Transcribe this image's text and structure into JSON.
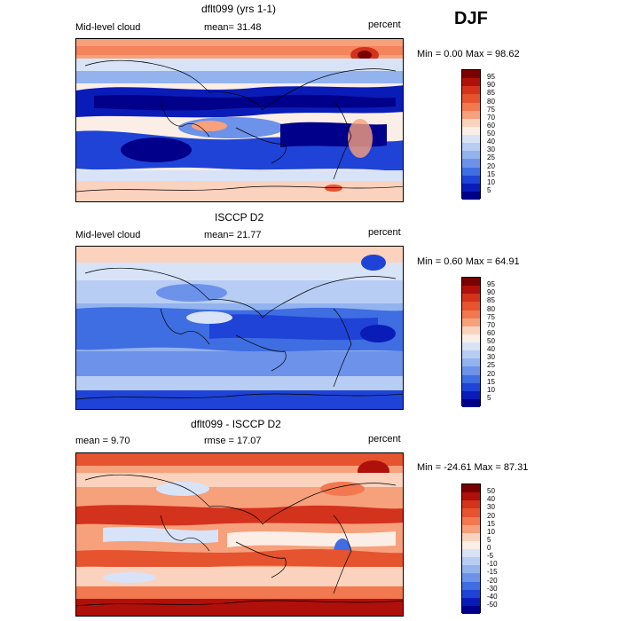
{
  "season": "DJF",
  "panels": [
    {
      "title": "dflt099 (yrs 1-1)",
      "field": "Mid-level cloud",
      "mean": "mean=  31.48",
      "units": "percent",
      "minmax": "Min =   0.00 Max =  98.62",
      "levels": [
        "95",
        "90",
        "85",
        "80",
        "75",
        "70",
        "60",
        "50",
        "40",
        "30",
        "25",
        "20",
        "15",
        "10",
        "5"
      ],
      "colors": [
        "#7a0000",
        "#b0100a",
        "#d3321c",
        "#e6532f",
        "#f2784f",
        "#f7a07c",
        "#fbd2be",
        "#fbeee6",
        "#d8e3f8",
        "#b7cdf4",
        "#93b3ef",
        "#6c92ea",
        "#3f6de2",
        "#1f43d6",
        "#0a1cb8",
        "#00008a"
      ]
    },
    {
      "title": "ISCCP D2",
      "field": "Mid-level cloud",
      "mean": "mean=  21.77",
      "units": "percent",
      "minmax": "Min =   0.60 Max =  64.91",
      "levels": [
        "95",
        "90",
        "85",
        "80",
        "75",
        "70",
        "60",
        "50",
        "40",
        "30",
        "25",
        "20",
        "15",
        "10",
        "5"
      ],
      "colors": [
        "#7a0000",
        "#b0100a",
        "#d3321c",
        "#e6532f",
        "#f2784f",
        "#f7a07c",
        "#fbd2be",
        "#fbeee6",
        "#d8e3f8",
        "#b7cdf4",
        "#93b3ef",
        "#6c92ea",
        "#3f6de2",
        "#1f43d6",
        "#0a1cb8",
        "#00008a"
      ]
    },
    {
      "title": "dflt099 - ISCCP D2",
      "field": "mean =   9.70",
      "mean": "rmse =  17.07",
      "units": "percent",
      "minmax": "Min = -24.61 Max =  87.31",
      "levels": [
        "50",
        "40",
        "30",
        "20",
        "15",
        "10",
        "5",
        "0",
        "-5",
        "-10",
        "-15",
        "-20",
        "-30",
        "-40",
        "-50"
      ],
      "colors": [
        "#7a0000",
        "#b0100a",
        "#d3321c",
        "#e6532f",
        "#f2784f",
        "#f7a07c",
        "#fbd2be",
        "#fbeee6",
        "#d8e3f8",
        "#b7cdf4",
        "#93b3ef",
        "#6c92ea",
        "#3f6de2",
        "#1f43d6",
        "#0a1cb8",
        "#00008a"
      ]
    }
  ]
}
